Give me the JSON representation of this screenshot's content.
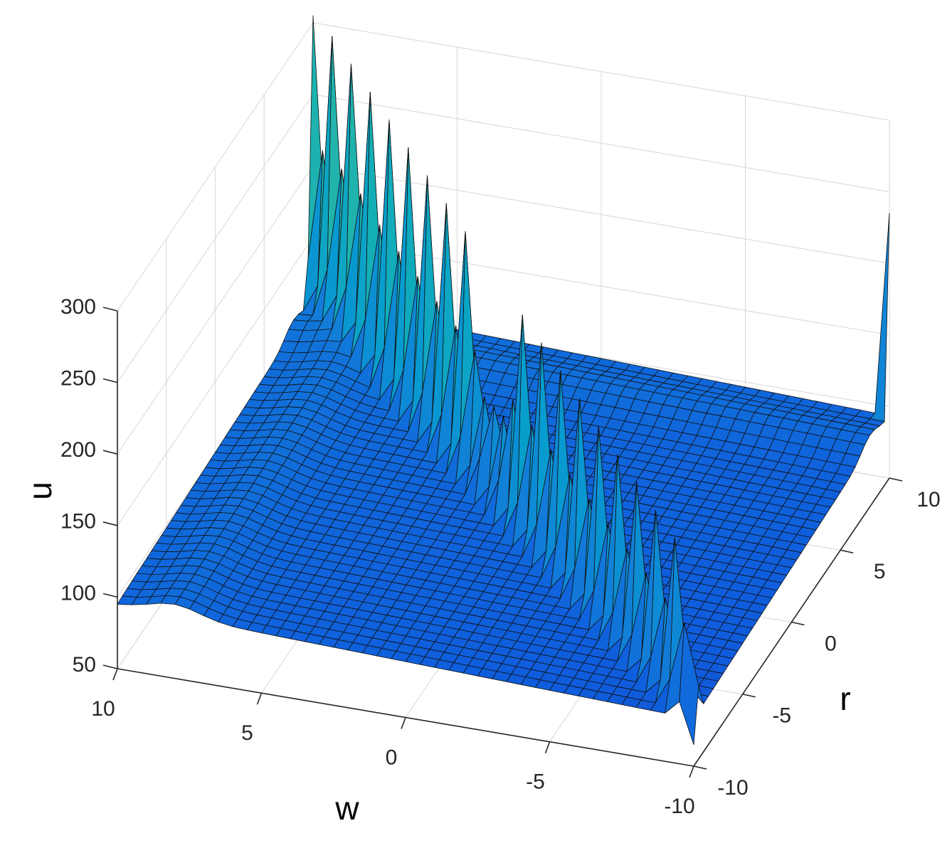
{
  "chart_data": {
    "type": "surface",
    "title": "",
    "xlabel": "w",
    "ylabel": "r",
    "zlabel": "u",
    "xlim": [
      -10,
      10
    ],
    "ylim": [
      -10,
      10
    ],
    "zlim": [
      50,
      300
    ],
    "x_ticks": [
      10,
      5,
      0,
      -5,
      -10
    ],
    "y_ticks": [
      -10,
      -5,
      0,
      5,
      10
    ],
    "z_ticks": [
      50,
      100,
      150,
      200,
      250,
      300
    ],
    "x_tick_labels": [
      "10",
      "5",
      "0",
      "-5",
      "-10"
    ],
    "y_tick_labels": [
      "-10",
      "-5",
      "0",
      "5",
      "10"
    ],
    "z_tick_labels": [
      "50",
      "100",
      "150",
      "200",
      "250",
      "300"
    ],
    "grid": true,
    "colormap": "parula",
    "mesh_size": 41,
    "surface_features": {
      "base_level": 95,
      "corner_values": [
        {
          "w": 10,
          "r": -10,
          "u": 95
        },
        {
          "w": -10,
          "r": -10,
          "u": 65
        },
        {
          "w": -10,
          "r": 10,
          "u": 235
        },
        {
          "w": 10,
          "r": 10,
          "u": 305
        }
      ],
      "diagonal_ridge": {
        "from": {
          "w": 10,
          "r": 10
        },
        "to": {
          "w": -10,
          "r": -10
        },
        "peak_start": 310,
        "peak_end": 190
      },
      "ridge_dip": {
        "w": 0.5,
        "r": 0.5,
        "u": 160
      }
    }
  }
}
